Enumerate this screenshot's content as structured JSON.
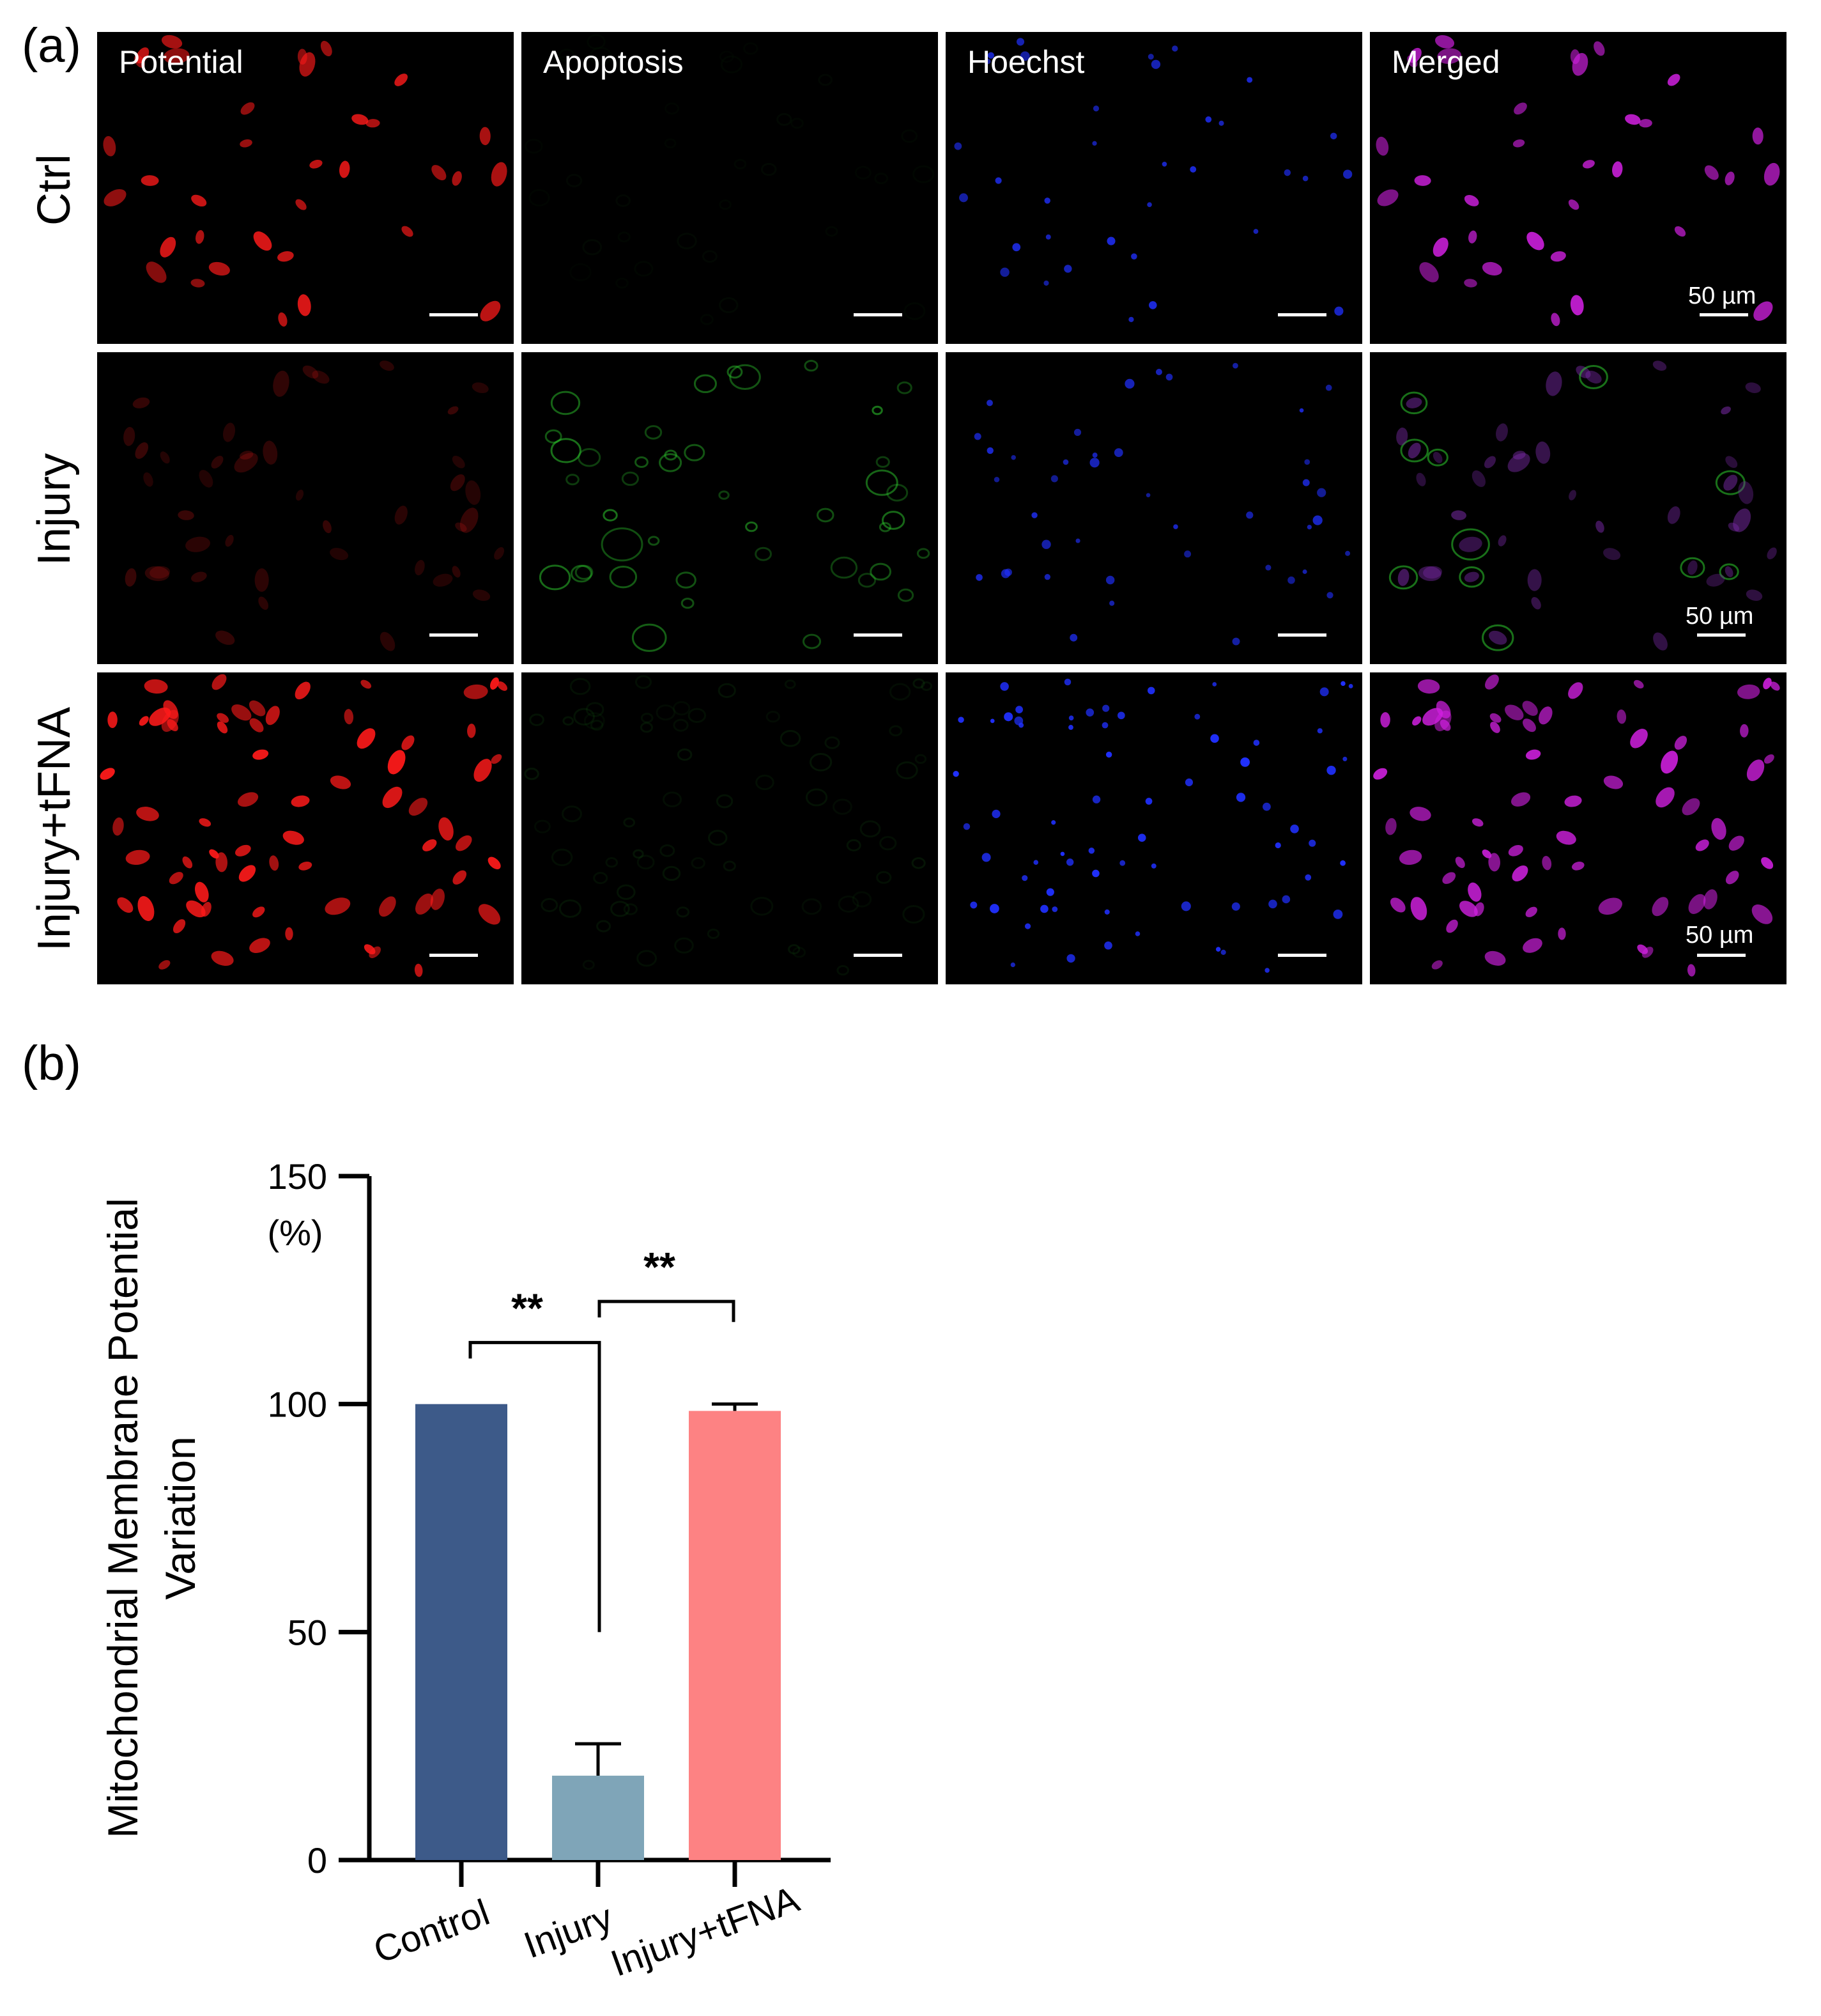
{
  "figure": {
    "panel_a_label": "(a)",
    "panel_b_label": "(b)",
    "columns": [
      "Potential",
      "Apoptosis",
      "Hoechst",
      "Merged"
    ],
    "rows": [
      "Ctrl",
      "Injury",
      "Injury+tFNA"
    ],
    "scale_bar_label": "50 µm",
    "channel_colors": {
      "Potential": "#ff1a1a",
      "Apoptosis": "#2ecc2e",
      "Hoechst": "#2030ff",
      "Merged": "#d020e0"
    }
  },
  "chart_data": {
    "type": "bar",
    "categories": [
      "Control",
      "Injury",
      "Injury+tFNA"
    ],
    "values": [
      100,
      18.5,
      98.5
    ],
    "errors": [
      0,
      7,
      1.5
    ],
    "colors": [
      "#3d5a89",
      "#7fa5b8",
      "#fd8283"
    ],
    "ylabel": "Mitochondrial Membrane Potential Variation",
    "yunit": "(%)",
    "ylim": [
      0,
      150
    ],
    "yticks": [
      0,
      50,
      100,
      150
    ],
    "significance": [
      {
        "from": "Control",
        "to": "Injury",
        "label": "**"
      },
      {
        "from": "Injury",
        "to": "Injury+tFNA",
        "label": "**"
      }
    ]
  }
}
